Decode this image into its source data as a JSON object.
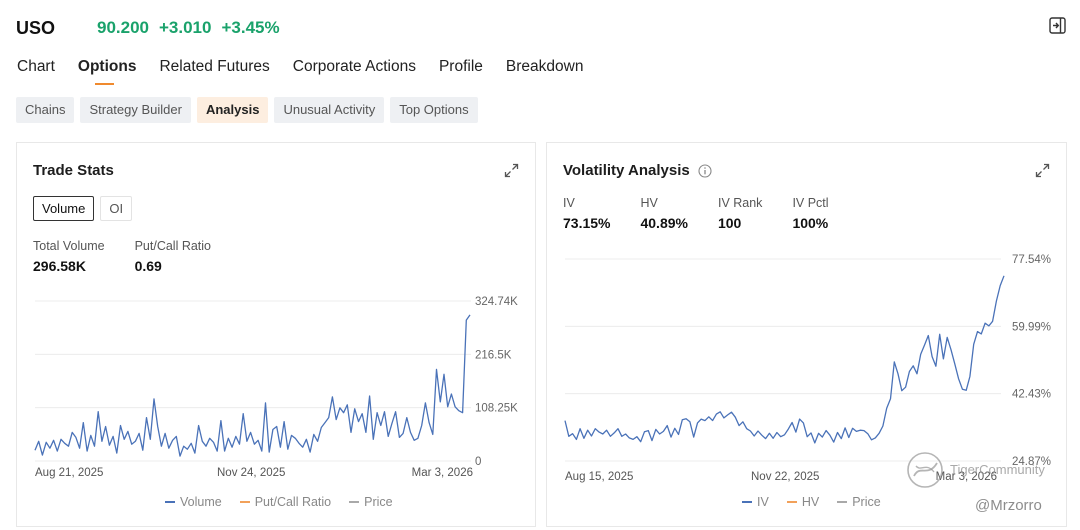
{
  "header": {
    "symbol": "USO",
    "price": "90.200",
    "change": "+3.010",
    "change_pct": "+3.45%",
    "price_color": "#1aa26b"
  },
  "tabs": [
    {
      "label": "Chart",
      "active": false
    },
    {
      "label": "Options",
      "active": true
    },
    {
      "label": "Related Futures",
      "active": false
    },
    {
      "label": "Corporate Actions",
      "active": false
    },
    {
      "label": "Profile",
      "active": false
    },
    {
      "label": "Breakdown",
      "active": false
    }
  ],
  "subtabs": [
    {
      "label": "Chains",
      "active": false
    },
    {
      "label": "Strategy Builder",
      "active": false
    },
    {
      "label": "Analysis",
      "active": true
    },
    {
      "label": "Unusual Activity",
      "active": false
    },
    {
      "label": "Top Options",
      "active": false
    }
  ],
  "trade_stats": {
    "title": "Trade Stats",
    "toggle": {
      "volume": "Volume",
      "oi": "OI"
    },
    "total_volume_label": "Total Volume",
    "total_volume": "296.58K",
    "pc_ratio_label": "Put/Call Ratio",
    "pc_ratio": "0.69",
    "legend": [
      "Volume",
      "Put/Call Ratio",
      "Price"
    ]
  },
  "volatility": {
    "title": "Volatility Analysis",
    "iv_label": "IV",
    "iv": "73.15%",
    "hv_label": "HV",
    "hv": "40.89%",
    "ivrank_label": "IV Rank",
    "ivrank": "100",
    "ivpctl_label": "IV Pctl",
    "ivpctl": "100%",
    "legend": [
      "IV",
      "HV",
      "Price"
    ]
  },
  "colors": {
    "iv": "#4a72b8",
    "hv": "#f2a15a",
    "price": "#a9a9a9",
    "volume": "#4a72b8"
  },
  "icons": {
    "exit": "exit-icon",
    "expand": "expand-icon",
    "info": "info-icon"
  },
  "watermark": {
    "brand": "TigerCommunity",
    "handle": "@Mrzorro"
  },
  "chart_data": [
    {
      "type": "line",
      "title": "Trade Stats",
      "series_name": "Volume",
      "x_ticks": [
        "Aug 21, 2025",
        "Nov 24, 2025",
        "Mar 3, 2026"
      ],
      "y_ticks": [
        "0",
        "108.25K",
        "216.5K",
        "324.74K"
      ],
      "ylim": [
        0,
        324740
      ],
      "values": [
        22000,
        40000,
        12000,
        38000,
        26000,
        42000,
        20000,
        44000,
        36000,
        30000,
        58000,
        48000,
        26000,
        78000,
        20000,
        52000,
        30000,
        100000,
        40000,
        70000,
        32000,
        50000,
        16000,
        72000,
        44000,
        60000,
        34000,
        40000,
        56000,
        22000,
        88000,
        44000,
        126000,
        70000,
        30000,
        56000,
        26000,
        42000,
        50000,
        10000,
        30000,
        24000,
        36000,
        16000,
        72000,
        40000,
        30000,
        46000,
        38000,
        20000,
        82000,
        20000,
        46000,
        28000,
        50000,
        34000,
        96000,
        40000,
        58000,
        34000,
        42000,
        20000,
        118000,
        18000,
        64000,
        70000,
        28000,
        80000,
        24000,
        52000,
        46000,
        36000,
        28000,
        44000,
        18000,
        54000,
        40000,
        68000,
        78000,
        88000,
        130000,
        84000,
        108000,
        98000,
        114000,
        58000,
        106000,
        80000,
        96000,
        58000,
        132000,
        44000,
        98000,
        72000,
        100000,
        50000,
        76000,
        100000,
        48000,
        56000,
        88000,
        58000,
        42000,
        46000,
        72000,
        118000,
        78000,
        54000,
        186000,
        120000,
        176000,
        110000,
        136000,
        110000,
        102000,
        98000,
        286000,
        296580
      ],
      "legend": [
        "Volume",
        "Put/Call Ratio",
        "Price"
      ]
    },
    {
      "type": "line",
      "title": "Volatility Analysis",
      "series_name": "IV",
      "x_ticks": [
        "Aug 15, 2025",
        "Nov 22, 2025",
        "Mar 3, 2026"
      ],
      "y_ticks": [
        "24.87%",
        "42.43%",
        "59.99%",
        "77.54%"
      ],
      "ylim": [
        24.87,
        77.54
      ],
      "values": [
        35.4,
        31.3,
        32.0,
        30.5,
        33.3,
        30.8,
        32.9,
        31.4,
        33.3,
        32.4,
        31.9,
        32.9,
        31.3,
        32.2,
        33.3,
        31.3,
        31.9,
        30.9,
        30.5,
        31.2,
        29.9,
        32.5,
        32.8,
        30.2,
        33.1,
        31.9,
        32.6,
        34.1,
        31.1,
        33.4,
        31.8,
        35.6,
        35.9,
        35.1,
        31.1,
        34.8,
        35.8,
        35.4,
        36.4,
        35.4,
        37.1,
        37.7,
        36.1,
        36.9,
        37.6,
        36.3,
        34.1,
        35.1,
        33.3,
        32.7,
        31.4,
        32.7,
        31.6,
        30.7,
        32.1,
        30.8,
        32.3,
        31.2,
        31.7,
        33.2,
        34.9,
        32.4,
        35.8,
        34.8,
        31.2,
        32.2,
        29.6,
        32.1,
        31.1,
        32.8,
        31.6,
        29.8,
        32.3,
        30.7,
        33.5,
        31.0,
        33.4,
        32.6,
        32.9,
        32.8,
        32.0,
        30.4,
        30.9,
        32.1,
        34.0,
        38.6,
        41.1,
        50.7,
        47.6,
        43.2,
        44.1,
        48.2,
        49.7,
        47.6,
        52.7,
        55.1,
        57.6,
        52.1,
        49.6,
        57.9,
        51.5,
        57.1,
        53.9,
        50.2,
        46.3,
        43.6,
        43.3,
        46.9,
        55.3,
        58.6,
        58.0,
        60.8,
        60.1,
        61.3,
        66.6,
        70.6,
        73.15
      ]
    }
  ]
}
